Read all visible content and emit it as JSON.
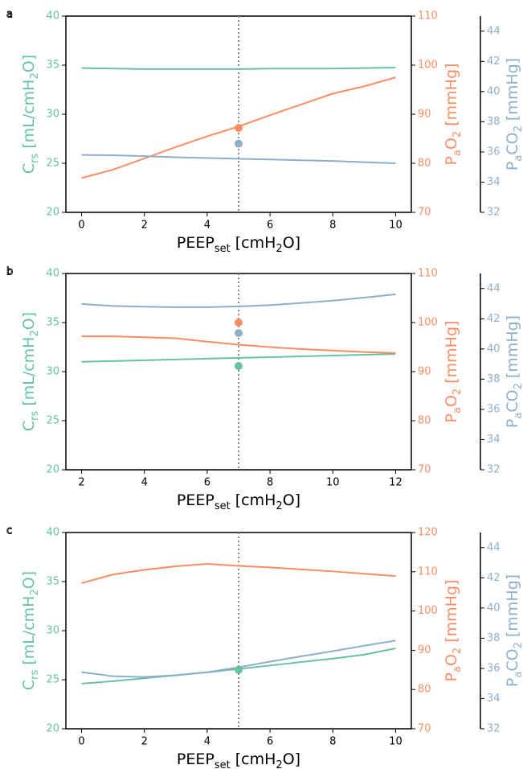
{
  "chart_data": [
    {
      "type": "line",
      "panel": "a",
      "x": [
        0,
        1,
        2,
        3,
        4,
        5,
        6,
        7,
        8,
        9,
        10
      ],
      "xlim": [
        -0.5,
        10.5
      ],
      "xticks": [
        0,
        2,
        4,
        6,
        8,
        10
      ],
      "xlabel": [
        "PEEP",
        "set",
        " [cmH",
        "2",
        "O]"
      ],
      "ylabel": [
        "C",
        "rs",
        " [mL/cmH",
        "2",
        "O]"
      ],
      "ylim": [
        20,
        40
      ],
      "yticks": [
        20,
        25,
        30,
        35,
        40
      ],
      "y2label": [
        "P",
        "a",
        "O",
        "2",
        " [mmHg]"
      ],
      "y2lim": [
        70,
        110
      ],
      "y2ticks": [
        70,
        80,
        90,
        100,
        110
      ],
      "y3label": [
        "P",
        "a",
        "CO",
        "2",
        " [mmHg]"
      ],
      "y3lim": [
        32,
        45
      ],
      "y3ticks": [
        32,
        34,
        36,
        38,
        40,
        42,
        44
      ],
      "vline": 5,
      "series": [
        {
          "axis": "y",
          "color": "#66c2a5",
          "values": [
            34.7,
            34.65,
            34.6,
            34.6,
            34.6,
            34.6,
            34.65,
            34.65,
            34.65,
            34.7,
            34.75
          ]
        },
        {
          "axis": "y2",
          "color": "#fc8d62",
          "values": [
            77,
            78.7,
            81,
            83.3,
            85.5,
            87.5,
            89.8,
            92,
            94.2,
            95.7,
            97.5
          ],
          "marker": 87.2
        },
        {
          "axis": "y3",
          "color": "#8fafc9",
          "values": [
            35.8,
            35.78,
            35.72,
            35.65,
            35.6,
            35.55,
            35.5,
            35.45,
            35.4,
            35.32,
            35.25
          ],
          "marker": 36.55
        }
      ]
    },
    {
      "type": "line",
      "panel": "b",
      "x": [
        2,
        3,
        4,
        5,
        6,
        7,
        8,
        9,
        10,
        11,
        12
      ],
      "xlim": [
        1.5,
        12.5
      ],
      "xticks": [
        2,
        4,
        6,
        8,
        10,
        12
      ],
      "xlabel": [
        "PEEP",
        "set",
        " [cmH",
        "2",
        "O]"
      ],
      "ylabel": [
        "C",
        "rs",
        " [mL/cmH",
        "2",
        "O]"
      ],
      "ylim": [
        20,
        40
      ],
      "yticks": [
        20,
        25,
        30,
        35,
        40
      ],
      "y2label": [
        "P",
        "a",
        "O",
        "2",
        " [mmHg]"
      ],
      "y2lim": [
        70,
        110
      ],
      "y2ticks": [
        70,
        80,
        90,
        100,
        110
      ],
      "y3label": [
        "P",
        "a",
        "CO",
        "2",
        " [mmHg]"
      ],
      "y3lim": [
        32,
        45
      ],
      "y3ticks": [
        32,
        34,
        36,
        38,
        40,
        42,
        44
      ],
      "vline": 7,
      "series": [
        {
          "axis": "y",
          "color": "#66c2a5",
          "values": [
            31.0,
            31.08,
            31.16,
            31.24,
            31.32,
            31.4,
            31.48,
            31.56,
            31.64,
            31.72,
            31.8
          ],
          "marker": 30.57
        },
        {
          "axis": "y2",
          "color": "#fc8d62",
          "values": [
            97.2,
            97.2,
            97.0,
            96.8,
            96.1,
            95.5,
            95.0,
            94.6,
            94.3,
            94.0,
            93.8
          ],
          "marker": 100
        },
        {
          "axis": "y3",
          "color": "#8fafc9",
          "values": [
            42.98,
            42.85,
            42.8,
            42.77,
            42.77,
            42.82,
            42.9,
            43.05,
            43.2,
            43.4,
            43.62
          ],
          "marker": 41.05
        }
      ]
    },
    {
      "type": "line",
      "panel": "c",
      "x": [
        0,
        1,
        2,
        3,
        4,
        5,
        6,
        7,
        8,
        9,
        10
      ],
      "xlim": [
        -0.5,
        10.5
      ],
      "xticks": [
        0,
        2,
        4,
        6,
        8,
        10
      ],
      "xlabel": [
        "PEEP",
        "set",
        " [cmH",
        "2",
        "O]"
      ],
      "ylabel": [
        "C",
        "rs",
        " [mL/cmH",
        "2",
        "O]"
      ],
      "ylim": [
        20,
        40
      ],
      "yticks": [
        20,
        25,
        30,
        35,
        40
      ],
      "y2label": [
        "P",
        "a",
        "O",
        "2",
        " [mmHg]"
      ],
      "y2lim": [
        70,
        120
      ],
      "y2ticks": [
        70,
        80,
        90,
        100,
        110,
        120
      ],
      "y3label": [
        "P",
        "a",
        "CO",
        "2",
        " [mmHg]"
      ],
      "y3lim": [
        32,
        45
      ],
      "y3ticks": [
        32,
        34,
        36,
        38,
        40,
        42,
        44
      ],
      "vline": 5,
      "series": [
        {
          "axis": "y",
          "color": "#66c2a5",
          "values": [
            24.6,
            24.85,
            25.15,
            25.45,
            25.75,
            26.1,
            26.45,
            26.8,
            27.15,
            27.55,
            28.2
          ],
          "marker": 26.0
        },
        {
          "axis": "y2",
          "color": "#fc8d62",
          "values": [
            107.1,
            109.3,
            110.5,
            111.4,
            112,
            111.5,
            111.1,
            110.6,
            110.1,
            109.5,
            108.9
          ]
        },
        {
          "axis": "y3",
          "color": "#8fafc9",
          "values": [
            35.75,
            35.48,
            35.43,
            35.54,
            35.75,
            36.07,
            36.45,
            36.8,
            37.14,
            37.5,
            37.84
          ]
        }
      ]
    }
  ]
}
